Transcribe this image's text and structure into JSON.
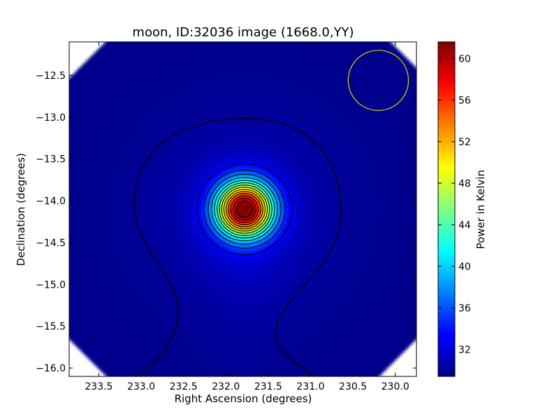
{
  "chart_data": {
    "type": "heatmap",
    "title": "moon, ID:32036 image (1668.0,YY)",
    "xlabel": "Right Ascension (degrees)",
    "ylabel": "Declination (degrees)",
    "xlim": [
      233.85,
      229.75
    ],
    "ylim": [
      -16.1,
      -12.1
    ],
    "x_ticks": [
      233.5,
      233.0,
      232.5,
      232.0,
      231.5,
      231.0,
      230.5,
      230.0
    ],
    "x_tick_labels": [
      "233.5",
      "233.0",
      "232.5",
      "232.0",
      "231.5",
      "231.0",
      "230.5",
      "230.0"
    ],
    "y_ticks": [
      -12.5,
      -13.0,
      -13.5,
      -14.0,
      -14.5,
      -15.0,
      -15.5,
      -16.0
    ],
    "y_tick_labels": [
      "−12.5",
      "−13.0",
      "−13.5",
      "−14.0",
      "−14.5",
      "−15.0",
      "−15.5",
      "−16.0"
    ],
    "source": {
      "ra": 231.78,
      "dec": -14.1,
      "peak_kelvin": 61.5,
      "sigma_deg": 0.23
    },
    "background_kelvin": 29.8,
    "contour_count": 14,
    "beam_circle": {
      "ra": 230.2,
      "dec": -12.56,
      "radius_deg": 0.36,
      "color": "#c8c800"
    },
    "colorbar": {
      "label": "Power in Kelvin",
      "vmin": 29.4,
      "vmax": 61.6,
      "ticks": [
        32,
        36,
        40,
        44,
        48,
        52,
        56,
        60
      ],
      "tick_labels": [
        "32",
        "36",
        "40",
        "44",
        "48",
        "52",
        "56",
        "60"
      ],
      "colormap": "jet"
    }
  }
}
